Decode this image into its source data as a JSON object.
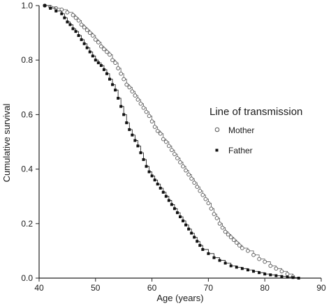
{
  "chart_data": {
    "type": "scatter",
    "title": "",
    "xlabel": "Age (years)",
    "ylabel": "Cumulative survival",
    "xlim": [
      40,
      90
    ],
    "ylim": [
      0.0,
      1.0
    ],
    "x_ticks": [
      "40",
      "50",
      "60",
      "70",
      "80",
      "90"
    ],
    "y_ticks": [
      "0.0",
      "0.2",
      "0.4",
      "0.6",
      "0.8",
      "1.0"
    ],
    "grid": false,
    "legend": {
      "title": "Line of transmission",
      "placement": "right-middle"
    },
    "series": [
      {
        "name": "Mother",
        "marker": "open-circle",
        "step_line": true,
        "color": "#555555",
        "x": [
          41,
          42,
          43,
          44,
          45,
          46,
          46.5,
          47,
          47.5,
          48,
          48.5,
          49,
          49.5,
          50,
          50.5,
          51,
          51.5,
          52,
          52.5,
          53,
          53.5,
          54,
          54.5,
          55,
          55.5,
          56,
          56.5,
          57,
          57.5,
          58,
          58.5,
          59,
          59.5,
          60,
          60.5,
          61,
          61.5,
          62,
          62.5,
          63,
          63.5,
          64,
          64.5,
          65,
          65.5,
          66,
          66.5,
          67,
          67.5,
          68,
          68.5,
          69,
          69.5,
          70,
          70.5,
          71,
          71.5,
          72,
          72.5,
          73,
          73.5,
          74,
          74.5,
          75,
          75.5,
          76,
          77,
          78,
          79,
          80,
          81,
          82,
          83,
          84,
          85
        ],
        "y": [
          1.0,
          0.995,
          0.99,
          0.985,
          0.975,
          0.965,
          0.955,
          0.945,
          0.93,
          0.92,
          0.91,
          0.9,
          0.89,
          0.875,
          0.865,
          0.85,
          0.84,
          0.83,
          0.82,
          0.8,
          0.79,
          0.77,
          0.75,
          0.73,
          0.71,
          0.7,
          0.685,
          0.67,
          0.655,
          0.64,
          0.625,
          0.61,
          0.595,
          0.575,
          0.555,
          0.54,
          0.53,
          0.51,
          0.5,
          0.485,
          0.47,
          0.455,
          0.44,
          0.425,
          0.41,
          0.395,
          0.38,
          0.365,
          0.35,
          0.335,
          0.32,
          0.305,
          0.29,
          0.275,
          0.255,
          0.235,
          0.22,
          0.2,
          0.185,
          0.17,
          0.16,
          0.15,
          0.14,
          0.13,
          0.12,
          0.11,
          0.1,
          0.085,
          0.07,
          0.06,
          0.045,
          0.035,
          0.025,
          0.015,
          0.005
        ]
      },
      {
        "name": "Father",
        "marker": "filled-square",
        "step_line": true,
        "color": "#111111",
        "x": [
          41,
          42,
          43,
          44,
          44.5,
          45,
          45.5,
          46,
          46.5,
          47,
          47.5,
          48,
          48.5,
          49,
          49.5,
          50,
          50.5,
          51,
          51.5,
          52,
          52.5,
          53,
          53.5,
          54,
          54.5,
          55,
          55.5,
          56,
          56.5,
          57,
          57.5,
          58,
          58.5,
          59,
          59.5,
          60,
          60.5,
          61,
          61.5,
          62,
          62.5,
          63,
          63.5,
          64,
          64.5,
          65,
          65.5,
          66,
          66.5,
          67,
          67.5,
          68,
          68.5,
          69,
          70,
          71,
          72,
          73,
          74,
          75,
          76,
          77,
          78,
          79,
          80,
          81,
          82,
          83,
          84,
          85,
          86
        ],
        "y": [
          1.0,
          0.99,
          0.98,
          0.97,
          0.955,
          0.94,
          0.93,
          0.915,
          0.905,
          0.89,
          0.875,
          0.86,
          0.845,
          0.83,
          0.815,
          0.8,
          0.79,
          0.78,
          0.765,
          0.75,
          0.73,
          0.71,
          0.69,
          0.66,
          0.63,
          0.6,
          0.57,
          0.545,
          0.525,
          0.505,
          0.485,
          0.46,
          0.435,
          0.41,
          0.39,
          0.375,
          0.36,
          0.345,
          0.33,
          0.315,
          0.3,
          0.285,
          0.27,
          0.255,
          0.24,
          0.225,
          0.21,
          0.195,
          0.18,
          0.165,
          0.15,
          0.135,
          0.12,
          0.105,
          0.09,
          0.075,
          0.065,
          0.055,
          0.045,
          0.04,
          0.035,
          0.03,
          0.025,
          0.02,
          0.015,
          0.012,
          0.009,
          0.006,
          0.004,
          0.002,
          0.0
        ]
      }
    ]
  }
}
